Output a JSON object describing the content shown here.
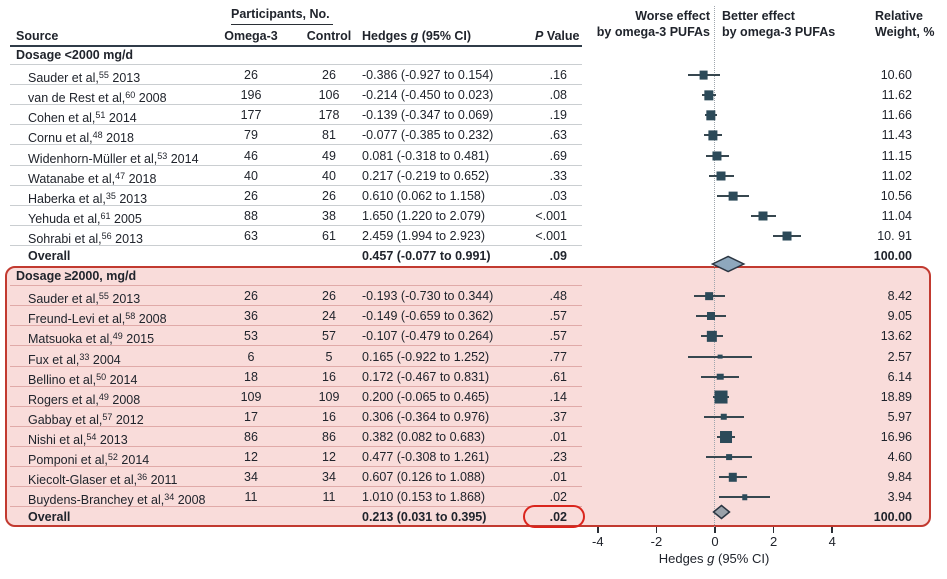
{
  "header": {
    "source": "Source",
    "participants_group": "Participants, No.",
    "omega3": "Omega-3",
    "control": "Control",
    "hedges_pre": "Hedges ",
    "hedges_italic": "g",
    "hedges_post": " (95% CI)",
    "p_italic": "P",
    "p_post": " Value",
    "worse_line1": "Worse effect",
    "worse_line2": "by omega-3 PUFAs",
    "better_line1": "Better effect",
    "better_line2": "by omega-3 PUFAs",
    "weight_line1": "Relative",
    "weight_line2": "Weight, %"
  },
  "axis": {
    "title_pre": "Hedges ",
    "title_italic": "g",
    "title_post": " (95% CI)"
  },
  "colors": {
    "marker_square": "#2c4a59",
    "ci_line": "#37474f",
    "diamond_section1_fill": "#8ea8bd",
    "diamond_section2_fill": "#9aa1a9",
    "diamond_stroke": "#2b3642",
    "highlight_border": "#c23a30",
    "highlight_fill": "#f9dcda",
    "p_circle": "#da251d"
  },
  "chart_data": {
    "type": "forest",
    "effect_measure": "Hedges g (95% CI)",
    "x_ticks": [
      -4,
      -2,
      0,
      2,
      4
    ],
    "x_range": [
      -4.3,
      4.3
    ],
    "sections": [
      {
        "label": "Dosage <2000 mg/d",
        "highlighted": false,
        "studies": [
          {
            "source": "Sauder et al,",
            "ref": "55",
            "year": "2013",
            "n_omega3": "26",
            "n_control": "26",
            "hedges_ci": "-0.386 (-0.927 to 0.154)",
            "p": ".16",
            "weight": "10.60",
            "g": -0.386,
            "lo": -0.927,
            "hi": 0.154,
            "w": 10.6
          },
          {
            "source": "van de Rest et al,",
            "ref": "60",
            "year": "2008",
            "n_omega3": "196",
            "n_control": "106",
            "hedges_ci": "-0.214 (-0.450 to 0.023)",
            "p": ".08",
            "weight": "11.62",
            "g": -0.214,
            "lo": -0.45,
            "hi": 0.023,
            "w": 11.62
          },
          {
            "source": "Cohen et al,",
            "ref": "51",
            "year": "2014",
            "n_omega3": "177",
            "n_control": "178",
            "hedges_ci": "-0.139 (-0.347 to 0.069)",
            "p": ".19",
            "weight": "11.66",
            "g": -0.139,
            "lo": -0.347,
            "hi": 0.069,
            "w": 11.66
          },
          {
            "source": "Cornu et al,",
            "ref": "48",
            "year": "2018",
            "n_omega3": "79",
            "n_control": "81",
            "hedges_ci": "-0.077 (-0.385 to 0.232)",
            "p": ".63",
            "weight": "11.43",
            "g": -0.077,
            "lo": -0.385,
            "hi": 0.232,
            "w": 11.43
          },
          {
            "source": "Widenhorn-Müller et al,",
            "ref": "53",
            "year": "2014",
            "n_omega3": "46",
            "n_control": "49",
            "hedges_ci": "0.081 (-0.318 to 0.481)",
            "p": ".69",
            "weight": "11.15",
            "g": 0.081,
            "lo": -0.318,
            "hi": 0.481,
            "w": 11.15
          },
          {
            "source": "Watanabe et al,",
            "ref": "47",
            "year": "2018",
            "n_omega3": "40",
            "n_control": "40",
            "hedges_ci": "0.217 (-0.219 to 0.652)",
            "p": ".33",
            "weight": "11.02",
            "g": 0.217,
            "lo": -0.219,
            "hi": 0.652,
            "w": 11.02
          },
          {
            "source": "Haberka et al,",
            "ref": "35",
            "year": "2013",
            "n_omega3": "26",
            "n_control": "26",
            "hedges_ci": "0.610 (0.062 to 1.158)",
            "p": ".03",
            "weight": "10.56",
            "g": 0.61,
            "lo": 0.062,
            "hi": 1.158,
            "w": 10.56
          },
          {
            "source": "Yehuda et al,",
            "ref": "61",
            "year": "2005",
            "n_omega3": "88",
            "n_control": "38",
            "hedges_ci": "1.650 (1.220 to 2.079)",
            "p": "<.001",
            "weight": "11.04",
            "g": 1.65,
            "lo": 1.22,
            "hi": 2.079,
            "w": 11.04
          },
          {
            "source": "Sohrabi et al,",
            "ref": "56",
            "year": "2013",
            "n_omega3": "63",
            "n_control": "61",
            "hedges_ci": "2.459 (1.994 to 2.923)",
            "p": "<.001",
            "weight": "10. 91",
            "g": 2.459,
            "lo": 1.994,
            "hi": 2.923,
            "w": 10.91
          }
        ],
        "overall": {
          "label": "Overall",
          "hedges_ci": "0.457 (-0.077 to 0.991)",
          "p": ".09",
          "weight": "100.00",
          "g": 0.457,
          "lo": -0.077,
          "hi": 0.991,
          "p_circled": false
        }
      },
      {
        "label": "Dosage ≥2000, mg/d",
        "highlighted": true,
        "studies": [
          {
            "source": "Sauder et al,",
            "ref": "55",
            "year": "2013",
            "n_omega3": "26",
            "n_control": "26",
            "hedges_ci": "-0.193 (-0.730 to 0.344)",
            "p": ".48",
            "weight": "8.42",
            "g": -0.193,
            "lo": -0.73,
            "hi": 0.344,
            "w": 8.42
          },
          {
            "source": "Freund-Levi et al,",
            "ref": "58",
            "year": "2008",
            "n_omega3": "36",
            "n_control": "24",
            "hedges_ci": "-0.149 (-0.659 to 0.362)",
            "p": ".57",
            "weight": "9.05",
            "g": -0.149,
            "lo": -0.659,
            "hi": 0.362,
            "w": 9.05
          },
          {
            "source": "Matsuoka et al,",
            "ref": "49",
            "year": "2015",
            "n_omega3": "53",
            "n_control": "57",
            "hedges_ci": "-0.107 (-0.479 to 0.264)",
            "p": ".57",
            "weight": "13.62",
            "g": -0.107,
            "lo": -0.479,
            "hi": 0.264,
            "w": 13.62
          },
          {
            "source": "Fux et al,",
            "ref": "33",
            "year": "2004",
            "n_omega3": "6",
            "n_control": "5",
            "hedges_ci": "0.165 (-0.922 to 1.252)",
            "p": ".77",
            "weight": "2.57",
            "g": 0.165,
            "lo": -0.922,
            "hi": 1.252,
            "w": 2.57
          },
          {
            "source": "Bellino et al,",
            "ref": "50",
            "year": "2014",
            "n_omega3": "18",
            "n_control": "16",
            "hedges_ci": "0.172 (-0.467 to 0.831)",
            "p": ".61",
            "weight": "6.14",
            "g": 0.172,
            "lo": -0.467,
            "hi": 0.831,
            "w": 6.14
          },
          {
            "source": "Rogers et al,",
            "ref": "49",
            "year": "2008",
            "n_omega3": "109",
            "n_control": "109",
            "hedges_ci": "0.200 (-0.065 to 0.465)",
            "p": ".14",
            "weight": "18.89",
            "g": 0.2,
            "lo": -0.065,
            "hi": 0.465,
            "w": 18.89
          },
          {
            "source": "Gabbay et al,",
            "ref": "57",
            "year": "2012",
            "n_omega3": "17",
            "n_control": "16",
            "hedges_ci": "0.306 (-0.364 to 0.976)",
            "p": ".37",
            "weight": "5.97",
            "g": 0.306,
            "lo": -0.364,
            "hi": 0.976,
            "w": 5.97
          },
          {
            "source": "Nishi et al,",
            "ref": "54",
            "year": "2013",
            "n_omega3": "86",
            "n_control": "86",
            "hedges_ci": "0.382 (0.082 to 0.683)",
            "p": ".01",
            "weight": "16.96",
            "g": 0.382,
            "lo": 0.082,
            "hi": 0.683,
            "w": 16.96
          },
          {
            "source": "Pomponi et al,",
            "ref": "52",
            "year": "2014",
            "n_omega3": "12",
            "n_control": "12",
            "hedges_ci": "0.477 (-0.308 to 1.261)",
            "p": ".23",
            "weight": "4.60",
            "g": 0.477,
            "lo": -0.308,
            "hi": 1.261,
            "w": 4.6
          },
          {
            "source": "Kiecolt-Glaser et al,",
            "ref": "36",
            "year": "2011",
            "n_omega3": "34",
            "n_control": "34",
            "hedges_ci": "0.607 (0.126 to 1.088)",
            "p": ".01",
            "weight": "9.84",
            "g": 0.607,
            "lo": 0.126,
            "hi": 1.088,
            "w": 9.84
          },
          {
            "source": "Buydens-Branchey et al,",
            "ref": "34",
            "year": "2008",
            "n_omega3": "11",
            "n_control": "11",
            "hedges_ci": "1.010 (0.153 to 1.868)",
            "p": ".02",
            "weight": "3.94",
            "g": 1.01,
            "lo": 0.153,
            "hi": 1.868,
            "w": 3.94
          }
        ],
        "overall": {
          "label": "Overall",
          "hedges_ci": "0.213 (0.031 to 0.395)",
          "p": ".02",
          "weight": "100.00",
          "g": 0.213,
          "lo": 0.031,
          "hi": 0.395,
          "p_circled": true
        }
      }
    ]
  }
}
